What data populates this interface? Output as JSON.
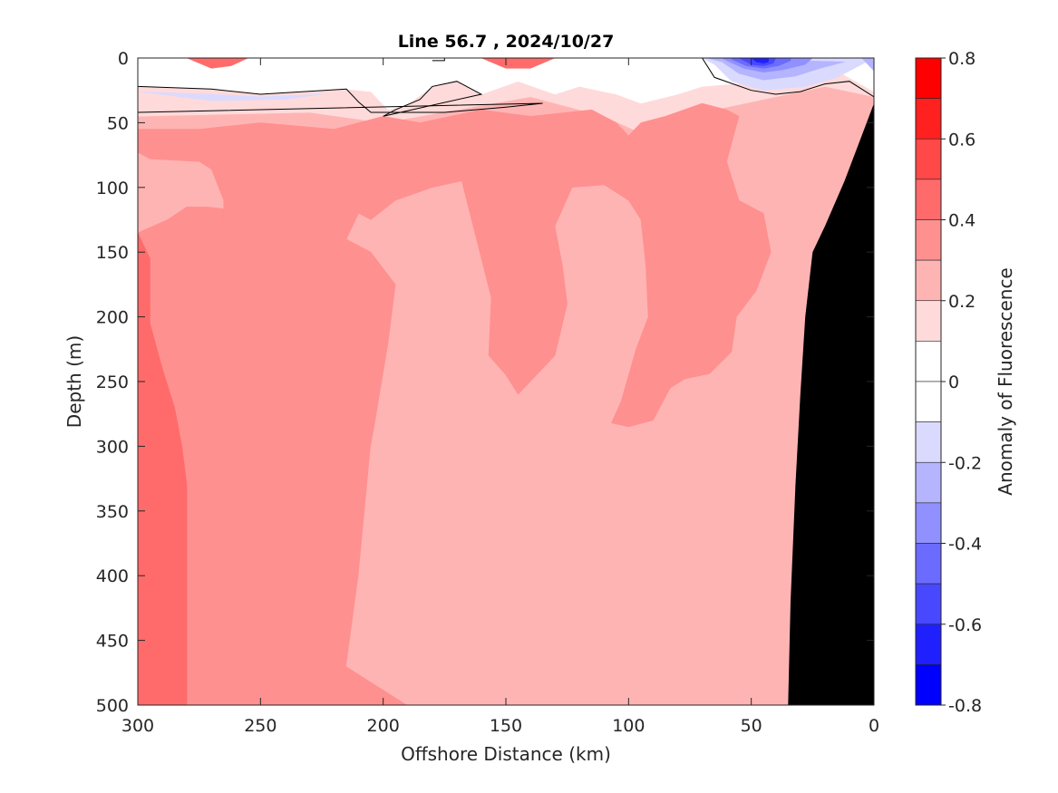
{
  "chart_data": {
    "type": "heatmap",
    "title": "Line 56.7 , 2024/10/27",
    "xlabel": "Offshore Distance (km)",
    "ylabel": "Depth (m)",
    "colorbar_label": "Anomaly of Fluorescence",
    "xlim": [
      300,
      0
    ],
    "ylim": [
      500,
      0
    ],
    "x_reversed": true,
    "y_reversed": true,
    "xticks": [
      300,
      250,
      200,
      150,
      100,
      50,
      0
    ],
    "yticks": [
      0,
      50,
      100,
      150,
      200,
      250,
      300,
      350,
      400,
      450,
      500
    ],
    "colorbar_ticks": [
      0.8,
      0.6,
      0.4,
      0.2,
      0,
      -0.2,
      -0.4,
      -0.6,
      -0.8
    ],
    "colorbar_levels": [
      {
        "min": 0.7,
        "max": 0.8,
        "color": "#ff0000"
      },
      {
        "min": 0.6,
        "max": 0.7,
        "color": "#ff2020"
      },
      {
        "min": 0.5,
        "max": 0.6,
        "color": "#ff4848"
      },
      {
        "min": 0.4,
        "max": 0.5,
        "color": "#ff6b6b"
      },
      {
        "min": 0.3,
        "max": 0.4,
        "color": "#ff9090"
      },
      {
        "min": 0.2,
        "max": 0.3,
        "color": "#ffb4b4"
      },
      {
        "min": 0.1,
        "max": 0.2,
        "color": "#ffdada"
      },
      {
        "min": 0.0,
        "max": 0.1,
        "color": "#ffffff"
      },
      {
        "min": -0.1,
        "max": 0.0,
        "color": "#ffffff"
      },
      {
        "min": -0.2,
        "max": -0.1,
        "color": "#dadaff"
      },
      {
        "min": -0.3,
        "max": -0.2,
        "color": "#b4b4ff"
      },
      {
        "min": -0.4,
        "max": -0.3,
        "color": "#9090ff"
      },
      {
        "min": -0.5,
        "max": -0.4,
        "color": "#6b6bff"
      },
      {
        "min": -0.6,
        "max": -0.5,
        "color": "#4848ff"
      },
      {
        "min": -0.7,
        "max": -0.6,
        "color": "#2020ff"
      },
      {
        "min": -0.8,
        "max": -0.7,
        "color": "#0000ff"
      }
    ],
    "regions": [
      {
        "level": 0.2,
        "color": "#ffb4b4",
        "points": [
          [
            300,
            0
          ],
          [
            0,
            0
          ],
          [
            0,
            500
          ],
          [
            300,
            500
          ]
        ]
      },
      {
        "level": 0.1,
        "color": "#ffdada",
        "points": [
          [
            300,
            45
          ],
          [
            230,
            42
          ],
          [
            200,
            50
          ],
          [
            170,
            40
          ],
          [
            140,
            30
          ],
          [
            110,
            45
          ],
          [
            95,
            58
          ],
          [
            75,
            52
          ],
          [
            65,
            40
          ],
          [
            40,
            30
          ],
          [
            20,
            22
          ],
          [
            0,
            30
          ],
          [
            0,
            0
          ],
          [
            300,
            0
          ]
        ]
      },
      {
        "level": 0.0,
        "color": "#ffffff",
        "points": [
          [
            300,
            22
          ],
          [
            270,
            24
          ],
          [
            250,
            28
          ],
          [
            215,
            24
          ],
          [
            205,
            26
          ],
          [
            198,
            40
          ],
          [
            190,
            36
          ],
          [
            180,
            22
          ],
          [
            170,
            18
          ],
          [
            160,
            28
          ],
          [
            145,
            18
          ],
          [
            130,
            28
          ],
          [
            120,
            22
          ],
          [
            105,
            28
          ],
          [
            95,
            35
          ],
          [
            80,
            28
          ],
          [
            70,
            22
          ],
          [
            45,
            18
          ],
          [
            30,
            12
          ],
          [
            15,
            10
          ],
          [
            0,
            26
          ],
          [
            0,
            0
          ],
          [
            300,
            0
          ]
        ]
      },
      {
        "level": 0.3,
        "color": "#ff9090",
        "points": [
          [
            300,
            73
          ],
          [
            295,
            78
          ],
          [
            275,
            80
          ],
          [
            270,
            86
          ],
          [
            265,
            110
          ],
          [
            265,
            130
          ],
          [
            255,
            140
          ],
          [
            252,
            170
          ],
          [
            262,
            185
          ],
          [
            267,
            207
          ],
          [
            265,
            220
          ],
          [
            258,
            227
          ],
          [
            252,
            210
          ],
          [
            247,
            180
          ],
          [
            241,
            170
          ],
          [
            242,
            140
          ],
          [
            248,
            120
          ],
          [
            272,
            115
          ],
          [
            280,
            115
          ],
          [
            288,
            125
          ],
          [
            300,
            135
          ],
          [
            300,
            500
          ],
          [
            190,
            500
          ],
          [
            215,
            470
          ],
          [
            210,
            400
          ],
          [
            205,
            300
          ],
          [
            198,
            220
          ],
          [
            195,
            175
          ],
          [
            205,
            150
          ],
          [
            215,
            140
          ],
          [
            210,
            120
          ],
          [
            205,
            125
          ],
          [
            195,
            110
          ],
          [
            180,
            100
          ],
          [
            168,
            95
          ],
          [
            162,
            140
          ],
          [
            156,
            185
          ],
          [
            157,
            230
          ],
          [
            150,
            245
          ],
          [
            145,
            260
          ],
          [
            140,
            250
          ],
          [
            130,
            230
          ],
          [
            125,
            190
          ],
          [
            127,
            160
          ],
          [
            130,
            130
          ],
          [
            123,
            100
          ],
          [
            110,
            98
          ],
          [
            100,
            110
          ],
          [
            95,
            125
          ],
          [
            93,
            160
          ],
          [
            92,
            200
          ],
          [
            97,
            225
          ],
          [
            103,
            265
          ],
          [
            107,
            282
          ],
          [
            100,
            285
          ],
          [
            90,
            280
          ],
          [
            83,
            255
          ],
          [
            77,
            248
          ],
          [
            67,
            244
          ],
          [
            58,
            227
          ],
          [
            56,
            200
          ],
          [
            48,
            180
          ],
          [
            42,
            150
          ],
          [
            45,
            120
          ],
          [
            55,
            110
          ],
          [
            60,
            80
          ],
          [
            55,
            45
          ],
          [
            60,
            40
          ],
          [
            70,
            35
          ],
          [
            85,
            45
          ],
          [
            95,
            50
          ],
          [
            100,
            60
          ],
          [
            105,
            50
          ],
          [
            115,
            40
          ],
          [
            140,
            45
          ],
          [
            160,
            40
          ],
          [
            185,
            50
          ],
          [
            200,
            45
          ],
          [
            220,
            55
          ],
          [
            250,
            50
          ],
          [
            275,
            55
          ],
          [
            300,
            55
          ]
        ]
      },
      {
        "level": 0.4,
        "color": "#ff6b6b",
        "points": [
          [
            300,
            135
          ],
          [
            295,
            155
          ],
          [
            295,
            205
          ],
          [
            290,
            240
          ],
          [
            285,
            270
          ],
          [
            282,
            300
          ],
          [
            280,
            330
          ],
          [
            280,
            500
          ],
          [
            300,
            500
          ]
        ]
      },
      {
        "level": 0.4,
        "color": "#ff6b6b",
        "points": [
          [
            280,
            0
          ],
          [
            255,
            0
          ],
          [
            262,
            6
          ],
          [
            270,
            8
          ]
        ]
      },
      {
        "level": 0.4,
        "color": "#ff6b6b",
        "points": [
          [
            160,
            0
          ],
          [
            130,
            0
          ],
          [
            140,
            8
          ],
          [
            150,
            8
          ]
        ]
      },
      {
        "level": 0.4,
        "color": "#ff6b6b",
        "points": [
          [
            300,
            480
          ],
          [
            290,
            500
          ],
          [
            300,
            500
          ]
        ]
      },
      {
        "level": 0.2,
        "color": "#ffb4b4",
        "points": [
          [
            190,
            500
          ],
          [
            215,
            470
          ],
          [
            210,
            400
          ],
          [
            205,
            300
          ],
          [
            200,
            250
          ],
          [
            190,
            245
          ],
          [
            180,
            300
          ],
          [
            180,
            400
          ],
          [
            175,
            470
          ],
          [
            185,
            500
          ]
        ]
      },
      {
        "level": -0.1,
        "color": "#dadaff",
        "points": [
          [
            300,
            26
          ],
          [
            270,
            28
          ],
          [
            250,
            30
          ],
          [
            225,
            28
          ],
          [
            240,
            32
          ],
          [
            270,
            33
          ]
        ]
      },
      {
        "level": -0.1,
        "color": "#dadaff",
        "points": [
          [
            65,
            5
          ],
          [
            58,
            18
          ],
          [
            45,
            25
          ],
          [
            28,
            22
          ],
          [
            15,
            15
          ],
          [
            5,
            5
          ],
          [
            0,
            0
          ],
          [
            70,
            0
          ]
        ]
      },
      {
        "level": -0.2,
        "color": "#b4b4ff",
        "points": [
          [
            62,
            3
          ],
          [
            55,
            12
          ],
          [
            45,
            17
          ],
          [
            32,
            14
          ],
          [
            22,
            8
          ],
          [
            12,
            3
          ],
          [
            68,
            0
          ]
        ]
      },
      {
        "level": -0.3,
        "color": "#9090ff",
        "points": [
          [
            60,
            2
          ],
          [
            53,
            8
          ],
          [
            45,
            11
          ],
          [
            37,
            9
          ],
          [
            28,
            5
          ],
          [
            25,
            0
          ],
          [
            62,
            0
          ]
        ]
      },
      {
        "level": -0.4,
        "color": "#6b6bff",
        "points": [
          [
            58,
            1
          ],
          [
            52,
            6
          ],
          [
            45,
            8
          ],
          [
            39,
            6
          ],
          [
            34,
            2
          ],
          [
            34,
            0
          ],
          [
            58,
            0
          ]
        ]
      },
      {
        "level": -0.5,
        "color": "#4848ff",
        "points": [
          [
            55,
            0
          ],
          [
            50,
            5
          ],
          [
            45,
            6
          ],
          [
            41,
            4
          ],
          [
            40,
            0
          ]
        ]
      },
      {
        "level": -0.6,
        "color": "#2020ff",
        "points": [
          [
            50,
            0
          ],
          [
            48,
            3
          ],
          [
            45,
            4
          ],
          [
            43,
            3
          ],
          [
            43,
            0
          ]
        ]
      },
      {
        "level": -0.2,
        "color": "#b4b4ff",
        "points": [
          [
            5,
            0
          ],
          [
            0,
            10
          ],
          [
            0,
            0
          ]
        ]
      }
    ],
    "contours": [
      [
        [
          300,
          22
        ],
        [
          270,
          24
        ],
        [
          250,
          28
        ],
        [
          215,
          24
        ],
        [
          210,
          34
        ],
        [
          205,
          42
        ],
        [
          175,
          42
        ],
        [
          150,
          38
        ],
        [
          135,
          35
        ],
        [
          300,
          42
        ]
      ],
      [
        [
          200,
          45
        ],
        [
          195,
          40
        ],
        [
          185,
          32
        ],
        [
          180,
          22
        ],
        [
          170,
          18
        ],
        [
          160,
          28
        ],
        [
          200,
          45
        ]
      ],
      [
        [
          180,
          0
        ],
        [
          175,
          0
        ],
        [
          175,
          2
        ],
        [
          180,
          2
        ]
      ],
      [
        [
          70,
          0
        ],
        [
          65,
          15
        ],
        [
          50,
          25
        ],
        [
          40,
          28
        ],
        [
          30,
          26
        ],
        [
          20,
          20
        ],
        [
          10,
          18
        ],
        [
          0,
          30
        ]
      ]
    ],
    "land_mask": [
      [
        0,
        35
      ],
      [
        5,
        60
      ],
      [
        12,
        95
      ],
      [
        20,
        130
      ],
      [
        25,
        150
      ],
      [
        28,
        200
      ],
      [
        30,
        260
      ],
      [
        32,
        330
      ],
      [
        34,
        420
      ],
      [
        35,
        500
      ],
      [
        0,
        500
      ]
    ]
  }
}
